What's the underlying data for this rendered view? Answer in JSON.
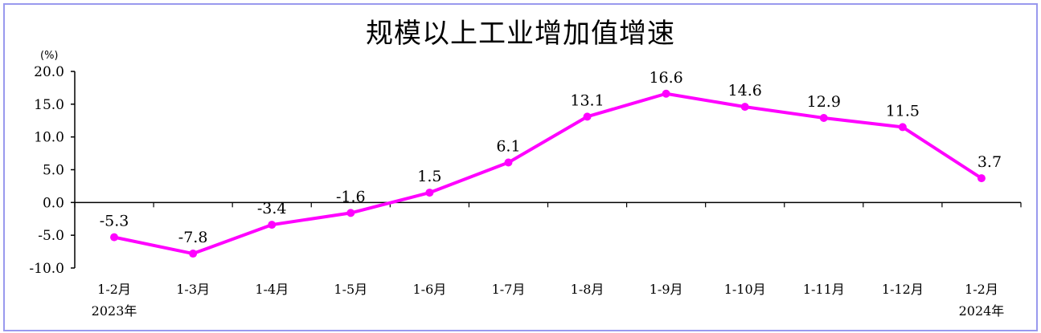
{
  "chart_data": {
    "type": "line",
    "title": "规模以上工业增加值增速",
    "ylabel": "(%)",
    "xlabel": "",
    "ylim": [
      -10,
      20
    ],
    "yticks": [
      "20.0",
      "15.0",
      "10.0",
      "5.0",
      "0.0",
      "-5.0",
      "-10.0"
    ],
    "categories": [
      "1-2月",
      "1-3月",
      "1-4月",
      "1-5月",
      "1-6月",
      "1-7月",
      "1-8月",
      "1-9月",
      "1-10月",
      "1-11月",
      "1-12月",
      "1-2月"
    ],
    "year_labels": [
      "2023年",
      "2024年"
    ],
    "series": [
      {
        "values": [
          -5.3,
          -7.8,
          -3.4,
          -1.6,
          1.5,
          6.1,
          13.1,
          16.6,
          14.6,
          12.9,
          11.5,
          3.7
        ],
        "labels": [
          "-5.3",
          "-7.8",
          "-3.4",
          "-1.6",
          "1.5",
          "6.1",
          "13.1",
          "16.6",
          "14.6",
          "12.9",
          "11.5",
          "3.7"
        ],
        "color": "#ff00ff"
      }
    ],
    "grid": false,
    "legend": "none"
  }
}
